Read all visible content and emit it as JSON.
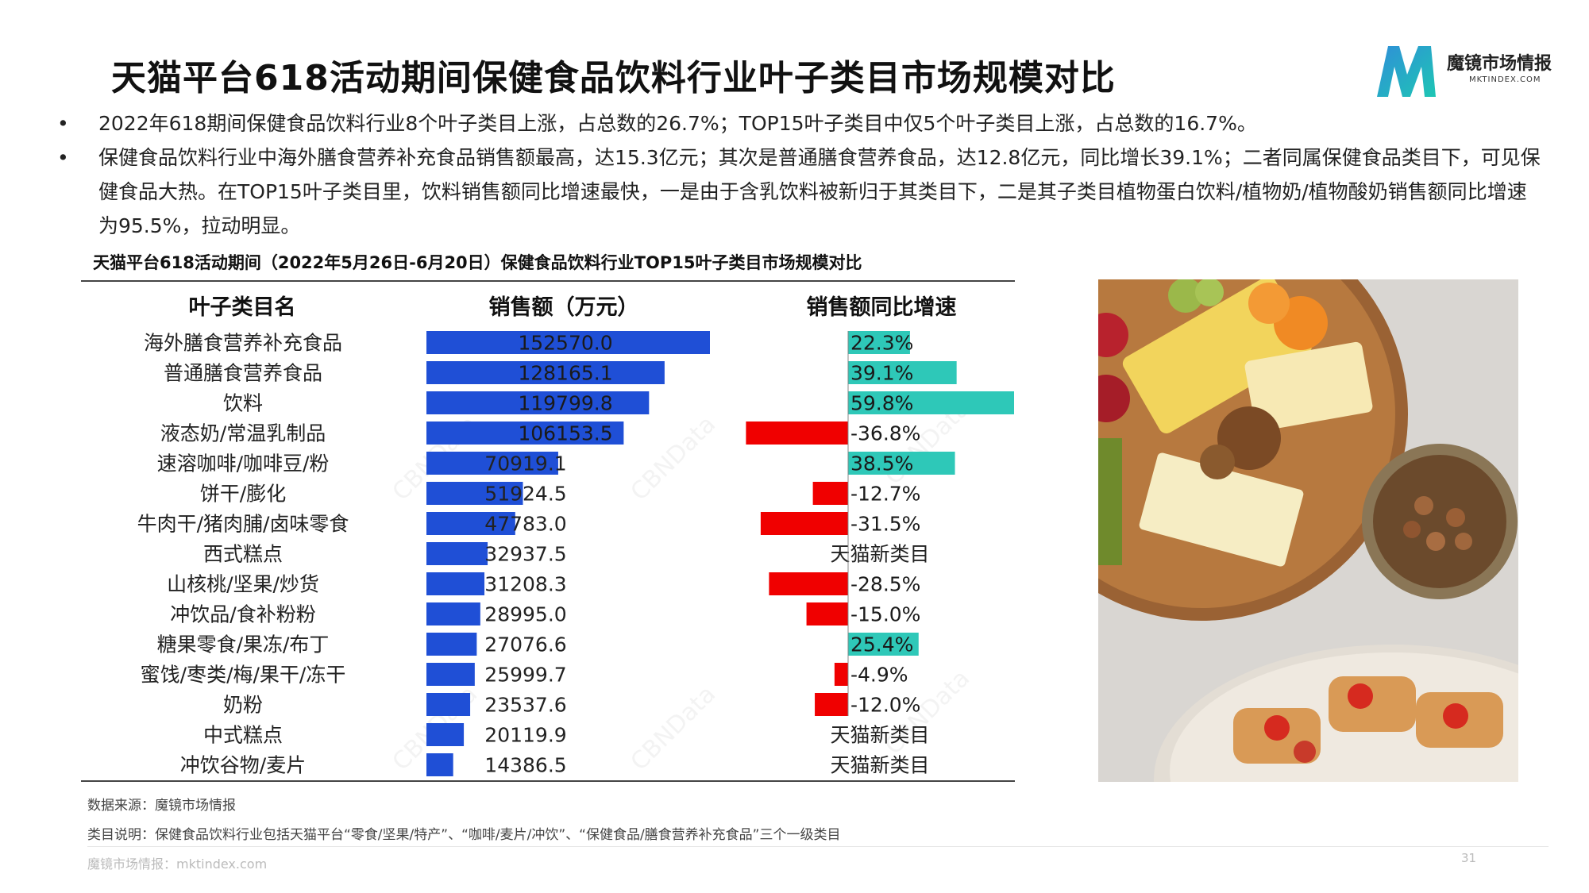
{
  "page": {
    "title": "天猫平台618活动期间保健食品饮料行业叶子类目市场规模对比",
    "logo": {
      "name": "魔镜市场情报",
      "domain": "MKTINDEX.COM"
    },
    "bullets": [
      "2022年618期间保健食品饮料行业8个叶子类目上涨，占总数的26.7%；TOP15叶子类目中仅5个叶子类目上涨，占总数的16.7%。",
      "保健食品饮料行业中海外膳食营养补充食品销售额最高，达15.3亿元；其次是普通膳食营养食品，达12.8亿元，同比增长39.1%；二者同属保健食品类目下，可见保健食品大热。在TOP15叶子类目里，饮料销售额同比增速最快，一是由于含乳饮料被新归于其类目下，二是其子类目植物蛋白饮料/植物奶/植物酸奶销售额同比增速为95.5%，拉动明显。"
    ],
    "footnotes": {
      "source": "数据来源：魔镜市场情报",
      "note": "类目说明：保健食品饮料行业包括天猫平台“零食/坚果/特产”、“咖啡/麦片/冲饮”、“保健食品/膳食营养补充食品”三个一级类目"
    },
    "footer": "魔镜市场情报：mktindex.com",
    "page_number": "31",
    "watermark": "CBNData",
    "colors": {
      "sales_bar": "#1f4fd6",
      "growth_positive": "#2ec8b8",
      "growth_negative": "#f00000",
      "text": "#222222"
    }
  },
  "chart_data": {
    "type": "table",
    "title": "天猫平台618活动期间（2022年5月26日-6月20日）保健食品饮料行业TOP15叶子类目市场规模对比",
    "columns": [
      "叶子类目名",
      "销售额（万元）",
      "销售额同比增速"
    ],
    "rows": [
      {
        "category": "海外膳食营养补充食品",
        "sales": 152570.0,
        "sales_label": "152570.0",
        "growth": 22.3,
        "growth_label": "22.3%"
      },
      {
        "category": "普通膳食营养食品",
        "sales": 128165.1,
        "sales_label": "128165.1",
        "growth": 39.1,
        "growth_label": "39.1%"
      },
      {
        "category": "饮料",
        "sales": 119799.8,
        "sales_label": "119799.8",
        "growth": 59.8,
        "growth_label": "59.8%"
      },
      {
        "category": "液态奶/常温乳制品",
        "sales": 106153.5,
        "sales_label": "106153.5",
        "growth": -36.8,
        "growth_label": "-36.8%"
      },
      {
        "category": "速溶咖啡/咖啡豆/粉",
        "sales": 70919.1,
        "sales_label": "70919.1",
        "growth": 38.5,
        "growth_label": "38.5%"
      },
      {
        "category": "饼干/膨化",
        "sales": 51924.5,
        "sales_label": "51924.5",
        "growth": -12.7,
        "growth_label": "-12.7%"
      },
      {
        "category": "牛肉干/猪肉脯/卤味零食",
        "sales": 47783.0,
        "sales_label": "47783.0",
        "growth": -31.5,
        "growth_label": "-31.5%"
      },
      {
        "category": "西式糕点",
        "sales": 32937.5,
        "sales_label": "32937.5",
        "growth": null,
        "growth_label": "天猫新类目"
      },
      {
        "category": "山核桃/坚果/炒货",
        "sales": 31208.3,
        "sales_label": "31208.3",
        "growth": -28.5,
        "growth_label": "-28.5%"
      },
      {
        "category": "冲饮品/食补粉粉",
        "sales": 28995.0,
        "sales_label": "28995.0",
        "growth": -15.0,
        "growth_label": "-15.0%"
      },
      {
        "category": "糖果零食/果冻/布丁",
        "sales": 27076.6,
        "sales_label": "27076.6",
        "growth": 25.4,
        "growth_label": "25.4%"
      },
      {
        "category": "蜜饯/枣类/梅/果干/冻干",
        "sales": 25999.7,
        "sales_label": "25999.7",
        "growth": -4.9,
        "growth_label": "-4.9%"
      },
      {
        "category": "奶粉",
        "sales": 23537.6,
        "sales_label": "23537.6",
        "growth": -12.0,
        "growth_label": "-12.0%"
      },
      {
        "category": "中式糕点",
        "sales": 20119.9,
        "sales_label": "20119.9",
        "growth": null,
        "growth_label": "天猫新类目"
      },
      {
        "category": "冲饮谷物/麦片",
        "sales": 14386.5,
        "sales_label": "14386.5",
        "growth": null,
        "growth_label": "天猫新类目"
      }
    ]
  }
}
